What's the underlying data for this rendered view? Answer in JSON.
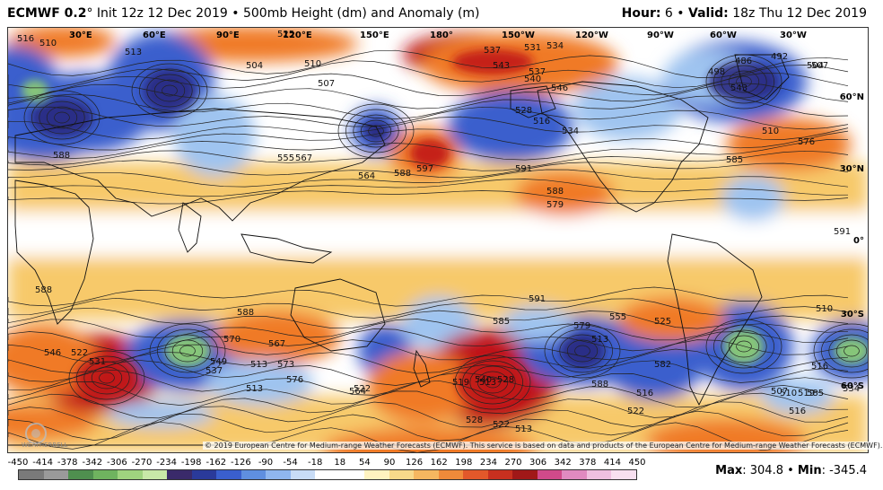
{
  "header": {
    "model": "ECMWF 0.2",
    "degree": "°",
    "init": " Init 12z 12 Dec 2019",
    "sep": " • ",
    "field": "500mb Height (dm) and Anomaly (m)",
    "hour_label": "Hour:",
    "hour_value": " 6",
    "valid_label": "Valid:",
    "valid_value": " 18z Thu 12 Dec 2019"
  },
  "map": {
    "longitude_labels": [
      "30°E",
      "60°E",
      "90°E",
      "120°E",
      "150°E",
      "180°",
      "150°W",
      "120°W",
      "90°W",
      "60°W",
      "30°W"
    ],
    "latitude_labels": [
      "60°N",
      "30°N",
      "0°",
      "30°S",
      "60°S"
    ],
    "contour_labels": [
      "516",
      "510",
      "513",
      "525",
      "537",
      "531",
      "534",
      "507",
      "504",
      "510",
      "498",
      "486",
      "492",
      "504",
      "507",
      "537",
      "540",
      "543",
      "546",
      "528",
      "516",
      "534",
      "543",
      "510",
      "576",
      "588",
      "555",
      "567",
      "564",
      "588",
      "597",
      "591",
      "588",
      "579",
      "585",
      "591",
      "588",
      "588",
      "591",
      "585",
      "570",
      "567",
      "549",
      "546",
      "522",
      "531",
      "537",
      "513",
      "573",
      "576",
      "579",
      "555",
      "525",
      "513",
      "582",
      "588",
      "510",
      "516",
      "513",
      "564",
      "534",
      "528",
      "540",
      "513",
      "519",
      "522",
      "516",
      "522",
      "507",
      "510",
      "519",
      "528",
      "522",
      "513",
      "516",
      "585"
    ],
    "anomaly_colors": {
      "strong_positive": "#c0181a",
      "positive": "#f07a27",
      "weak_positive": "#f7c96b",
      "neutral": "#ffffff",
      "weak_negative": "#9fc4f0",
      "negative": "#3a5fcd",
      "strong_negative": "#2a2a80",
      "extreme_negative": "#8fd070"
    }
  },
  "copyright": "© 2019 European Centre for Medium-range Weather Forecasts (ECMWF). This service is based on data and products of the European Centre for Medium-range Weather Forecasts (ECMWF).",
  "logo_text": "WEATHERBELL",
  "colorbar": {
    "ticks": [
      "-450",
      "-414",
      "-378",
      "-342",
      "-306",
      "-270",
      "-234",
      "-198",
      "-162",
      "-126",
      "-90",
      "-54",
      "-18",
      "18",
      "54",
      "90",
      "126",
      "162",
      "198",
      "234",
      "270",
      "306",
      "342",
      "378",
      "414",
      "450"
    ],
    "colors": [
      "#7a7a7a",
      "#9a9a9a",
      "#4f8f4f",
      "#6fb35f",
      "#9fd37f",
      "#c8e8a8",
      "#3a2a6a",
      "#2a3a9a",
      "#3a5fcd",
      "#5f8fe0",
      "#8fb6ef",
      "#c8dcf6",
      "#ffffff",
      "#ffffff",
      "#fff3c0",
      "#f7d98a",
      "#f5b760",
      "#f08a3a",
      "#e2582a",
      "#c8301f",
      "#a01818",
      "#d04a8a",
      "#e08ac0",
      "#f0c0e0",
      "#f8e0f0"
    ]
  },
  "stats": {
    "max_label": "Max",
    "max_value": ": 304.8",
    "sep": " • ",
    "min_label": "Min",
    "min_value": ": -345.4"
  }
}
